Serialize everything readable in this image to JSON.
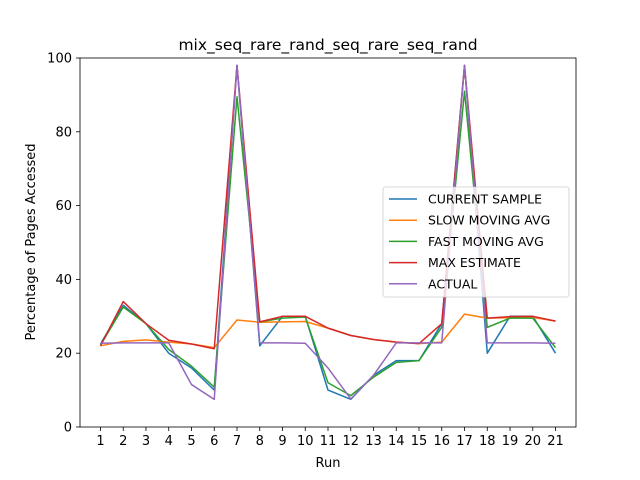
{
  "chart_data": {
    "type": "line",
    "title": "mix_seq_rare_rand_seq_rare_seq_rand",
    "xlabel": "Run",
    "ylabel": "Percentage of Pages Accessed",
    "x": [
      1,
      2,
      3,
      4,
      5,
      6,
      7,
      8,
      9,
      10,
      11,
      12,
      13,
      14,
      15,
      16,
      17,
      18,
      19,
      20,
      21
    ],
    "xlim": [
      0.1,
      21.9
    ],
    "ylim": [
      0,
      100
    ],
    "yticks": [
      0,
      20,
      40,
      60,
      80,
      100
    ],
    "grid": false,
    "legend_position": "center-right",
    "series": [
      {
        "name": "CURRENT SAMPLE",
        "color": "#1f77b4",
        "values": [
          22.5,
          33.0,
          28.0,
          20.0,
          16.0,
          10.0,
          98.0,
          22.0,
          30.0,
          30.0,
          10.0,
          7.5,
          14.0,
          18.0,
          18.0,
          28.0,
          98.0,
          20.0,
          30.0,
          30.0,
          20.0
        ]
      },
      {
        "name": "SLOW MOVING AVG",
        "color": "#ff7f0e",
        "values": [
          22.0,
          23.2,
          23.6,
          23.0,
          22.5,
          21.5,
          29.0,
          28.4,
          28.5,
          28.6,
          26.8,
          24.8,
          23.7,
          23.0,
          22.6,
          23.0,
          30.6,
          29.5,
          29.6,
          29.7,
          28.7
        ]
      },
      {
        "name": "FAST MOVING AVG",
        "color": "#2ca02c",
        "values": [
          22.2,
          32.5,
          28.0,
          21.0,
          16.5,
          10.8,
          89.5,
          28.5,
          29.5,
          29.8,
          12.0,
          8.5,
          13.5,
          17.5,
          18.0,
          27.0,
          91.0,
          27.0,
          29.5,
          29.5,
          21.5
        ]
      },
      {
        "name": "MAX ESTIMATE",
        "color": "#d62728",
        "values": [
          22.0,
          34.0,
          28.0,
          23.5,
          22.5,
          21.2,
          98.0,
          28.5,
          30.0,
          30.0,
          26.8,
          24.8,
          23.7,
          23.0,
          22.6,
          28.0,
          98.0,
          29.5,
          29.9,
          30.0,
          28.7
        ]
      },
      {
        "name": "ACTUAL",
        "color": "#9467bd",
        "values": [
          22.7,
          22.8,
          22.8,
          22.8,
          11.5,
          7.5,
          98.0,
          22.8,
          22.8,
          22.7,
          16.0,
          7.6,
          14.0,
          22.8,
          22.8,
          22.8,
          98.0,
          22.8,
          22.8,
          22.8,
          22.7
        ]
      }
    ]
  }
}
